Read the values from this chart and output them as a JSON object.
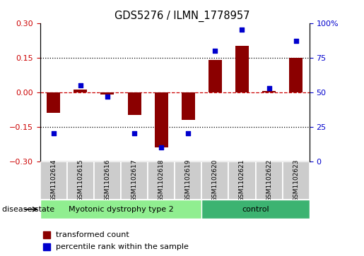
{
  "title": "GDS5276 / ILMN_1778957",
  "samples": [
    "GSM1102614",
    "GSM1102615",
    "GSM1102616",
    "GSM1102617",
    "GSM1102618",
    "GSM1102619",
    "GSM1102620",
    "GSM1102621",
    "GSM1102622",
    "GSM1102623"
  ],
  "bar_values": [
    -0.09,
    0.01,
    -0.01,
    -0.1,
    -0.24,
    -0.12,
    0.14,
    0.2,
    0.005,
    0.15
  ],
  "dot_values": [
    20,
    55,
    47,
    20,
    10,
    20,
    80,
    95,
    53,
    87
  ],
  "bar_color": "#8B0000",
  "dot_color": "#0000CD",
  "ylim_left": [
    -0.3,
    0.3
  ],
  "ylim_right": [
    0,
    100
  ],
  "yticks_left": [
    -0.3,
    -0.15,
    0.0,
    0.15,
    0.3
  ],
  "yticks_right": [
    0,
    25,
    50,
    75,
    100
  ],
  "ytick_labels_right": [
    "0",
    "25",
    "50",
    "75",
    "100%"
  ],
  "group1_label": "Myotonic dystrophy type 2",
  "group2_label": "control",
  "disease_state_label": "disease state",
  "legend_bar_label": "transformed count",
  "legend_dot_label": "percentile rank within the sample",
  "group1_color": "#90EE90",
  "group2_color": "#3CB371",
  "xlabel_area_color": "#CCCCCC",
  "background_color": "#FFFFFF"
}
